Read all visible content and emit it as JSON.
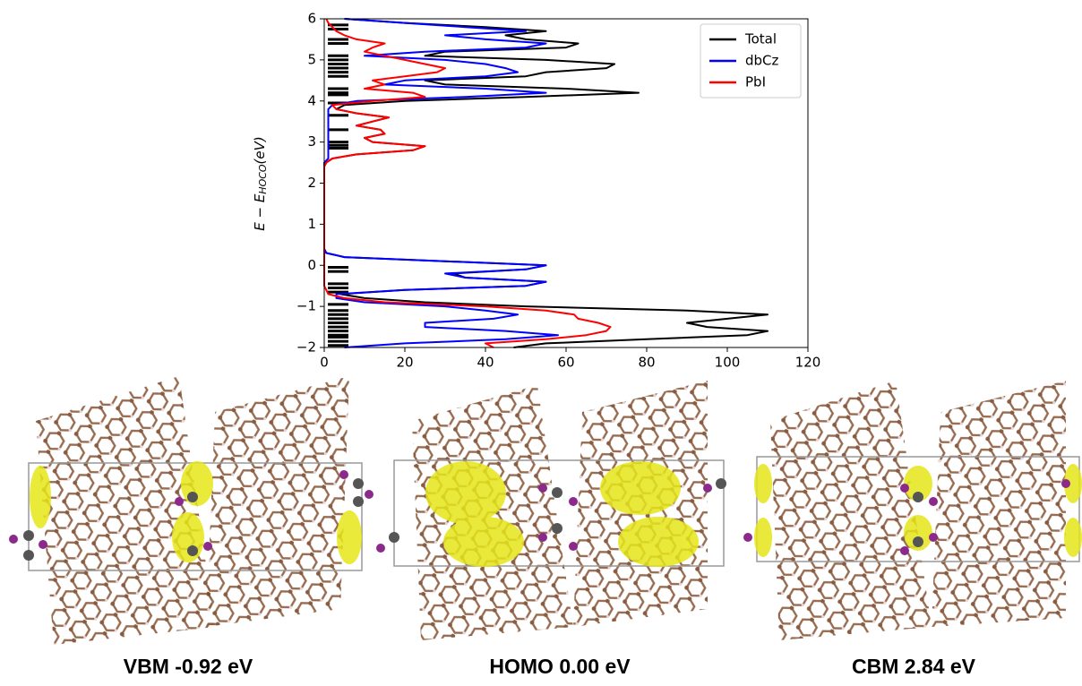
{
  "chart_data": {
    "type": "line",
    "orientation": "horizontal",
    "ylabel": {
      "main": "E − E",
      "sub": "HOCO",
      "unit": "(eV)"
    },
    "xlim": [
      0,
      120
    ],
    "xticks": [
      0,
      20,
      40,
      60,
      80,
      100,
      120
    ],
    "ylim": [
      -2,
      6
    ],
    "yticks": [
      {
        "value": -2,
        "label": "−2"
      },
      {
        "value": -1,
        "label": "−1"
      },
      0,
      1,
      2,
      3,
      4,
      5,
      6
    ],
    "legend": "upper right",
    "energy": [
      -2.0,
      -1.9,
      -1.8,
      -1.7,
      -1.6,
      -1.5,
      -1.4,
      -1.3,
      -1.2,
      -1.1,
      -1.0,
      -0.9,
      -0.8,
      -0.7,
      -0.6,
      -0.5,
      -0.4,
      -0.3,
      -0.2,
      -0.1,
      0.0,
      0.1,
      0.2,
      0.3,
      0.4,
      0.5,
      1.0,
      1.5,
      2.0,
      2.4,
      2.5,
      2.6,
      2.7,
      2.8,
      2.9,
      3.0,
      3.1,
      3.2,
      3.3,
      3.4,
      3.5,
      3.6,
      3.7,
      3.8,
      3.9,
      4.0,
      4.1,
      4.2,
      4.3,
      4.4,
      4.5,
      4.6,
      4.7,
      4.8,
      4.9,
      5.0,
      5.1,
      5.2,
      5.3,
      5.4,
      5.5,
      5.6,
      5.7,
      5.8,
      5.9,
      6.0
    ],
    "series": [
      {
        "name": "Total",
        "color": "#000000",
        "values": [
          47,
          55,
          80,
          105,
          110,
          95,
          90,
          100,
          110,
          90,
          50,
          25,
          10,
          4,
          20,
          50,
          55,
          35,
          32,
          50,
          55,
          30,
          5,
          0.5,
          0,
          0,
          0,
          0,
          0,
          0,
          0.5,
          2,
          8,
          22,
          25,
          12,
          10,
          15,
          14,
          8,
          12,
          16,
          8,
          3,
          5,
          20,
          50,
          78,
          60,
          30,
          25,
          50,
          55,
          70,
          72,
          55,
          25,
          30,
          60,
          63,
          50,
          45,
          55,
          40,
          20,
          5
        ]
      },
      {
        "name": "dbCz",
        "color": "#0000ff",
        "values": [
          5,
          20,
          45,
          58,
          45,
          25,
          25,
          42,
          48,
          40,
          30,
          10,
          3,
          3,
          20,
          50,
          55,
          35,
          30,
          50,
          55,
          30,
          5,
          0.5,
          0,
          0,
          0,
          0,
          0,
          0,
          0,
          1,
          1,
          1,
          1,
          1,
          1,
          1,
          1,
          1,
          1,
          1,
          1,
          1,
          2,
          8,
          35,
          55,
          40,
          15,
          20,
          40,
          48,
          45,
          40,
          30,
          10,
          25,
          50,
          55,
          40,
          30,
          50,
          35,
          20,
          5
        ]
      },
      {
        "name": "PbI",
        "color": "#ff0000",
        "values": [
          42,
          40,
          55,
          65,
          70,
          71,
          68,
          63,
          62,
          55,
          40,
          15,
          5,
          1,
          0.5,
          0,
          0,
          0,
          0,
          0,
          0,
          0,
          0,
          0,
          0,
          0,
          0,
          0,
          0,
          0,
          0.5,
          2,
          8,
          22,
          25,
          12,
          10,
          15,
          14,
          8,
          12,
          16,
          8,
          3,
          2,
          12,
          25,
          22,
          10,
          15,
          12,
          20,
          28,
          30,
          25,
          20,
          15,
          10,
          12,
          15,
          8,
          5,
          3,
          2,
          1,
          0.5
        ]
      }
    ],
    "energy_levels": [
      5.85,
      5.75,
      5.5,
      5.4,
      5.1,
      5.0,
      4.9,
      4.8,
      4.7,
      4.6,
      4.3,
      4.2,
      4.15,
      3.95,
      3.65,
      3.3,
      3.0,
      2.92,
      2.85,
      -0.05,
      -0.15,
      -0.45,
      -0.55,
      -0.65,
      -0.95,
      -1.1,
      -1.2,
      -1.3,
      -1.4,
      -1.5,
      -1.6,
      -1.7,
      -1.75,
      -1.85,
      -1.95
    ]
  },
  "panels": [
    {
      "caption": "VBM -0.92 eV"
    },
    {
      "caption": "HOMO 0.00 eV"
    },
    {
      "caption": "CBM 2.84 eV"
    }
  ]
}
